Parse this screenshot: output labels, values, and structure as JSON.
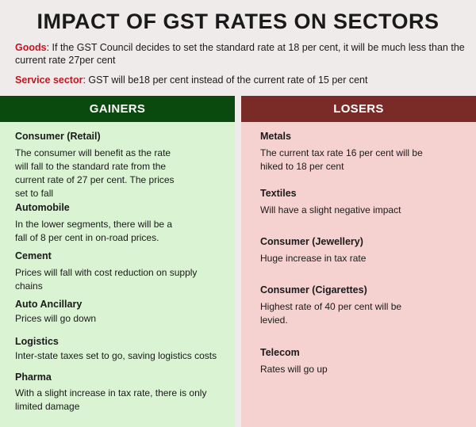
{
  "title": "IMPACT OF GST RATES ON SECTORS",
  "intro": {
    "goods_label": "Goods",
    "goods_text": ": If the GST Council decides to set the standard rate at 18 per cent, it will be much less than the current rate 27per cent",
    "service_label": "Service sector",
    "service_text": ": GST will be18 per cent  instead of the current rate of 15 per cent"
  },
  "colors": {
    "gainers_header": "#0b4a0f",
    "gainers_bg": "#d9f3d3",
    "losers_header": "#7a2b27",
    "losers_bg": "#f5d2d0",
    "highlight": "#c8141e"
  },
  "gainers": {
    "header": "GAINERS",
    "items": [
      {
        "title": "Consumer (Retail)",
        "desc": "The consumer will benefit as the rate will fall to the standard rate from the current rate of 27 per cent. The prices set to fall"
      },
      {
        "title": "Automobile",
        "desc": "In the lower segments, there will be a fall of 8 per cent in on-road prices."
      },
      {
        "title": "Cement",
        "desc": "Prices will fall with cost reduction on supply chains"
      },
      {
        "title": "Auto Ancillary",
        "desc": "Prices will go down"
      },
      {
        "title": "Logistics",
        "desc": "Inter-state taxes set to go, saving logistics costs"
      },
      {
        "title": "Pharma",
        "desc": "With a slight increase in tax rate, there is only limited damage"
      }
    ]
  },
  "losers": {
    "header": "LOSERS",
    "items": [
      {
        "title": "Metals",
        "desc": "The current tax rate 16 per cent will be hiked to 18 per cent"
      },
      {
        "title": "Textiles",
        "desc": "Will have a slight negative impact"
      },
      {
        "title": "Consumer (Jewellery)",
        "desc": "Huge increase in tax rate"
      },
      {
        "title": "Consumer (Cigarettes)",
        "desc": "Highest rate of 40 per cent will be levied."
      },
      {
        "title": "Telecom",
        "desc": "Rates will go up"
      }
    ]
  }
}
